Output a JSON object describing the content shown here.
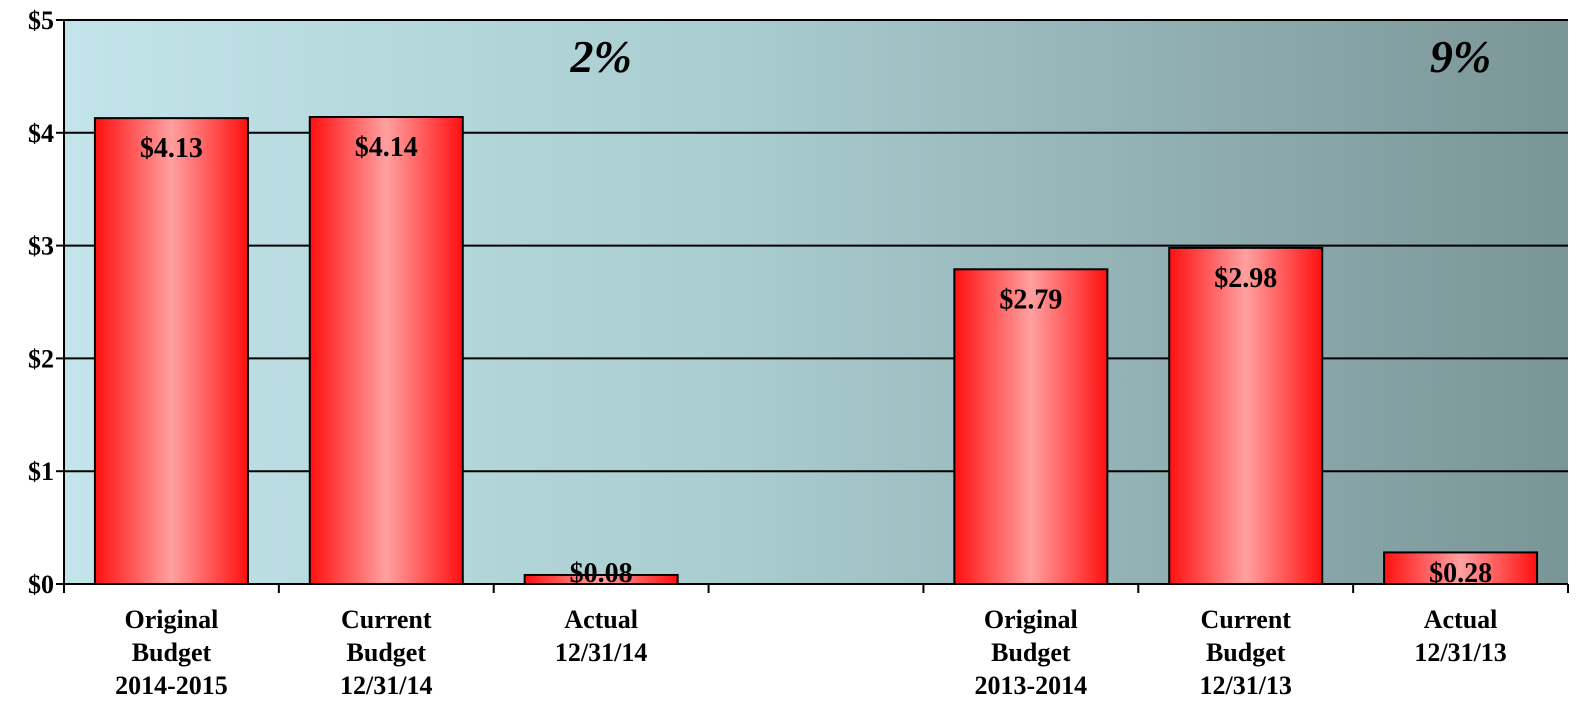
{
  "chart_data": {
    "type": "bar",
    "categories": [
      [
        "Original",
        "Budget",
        "2014-2015"
      ],
      [
        "Current",
        "Budget",
        "12/31/14"
      ],
      [
        "Actual",
        "12/31/14"
      ],
      [],
      [
        "Original",
        "Budget",
        "2013-2014"
      ],
      [
        "Current",
        "Budget",
        "12/31/13"
      ],
      [
        "Actual",
        "12/31/13"
      ]
    ],
    "values": [
      4.13,
      4.14,
      0.08,
      null,
      2.79,
      2.98,
      0.28
    ],
    "data_labels": [
      "$4.13",
      "$4.14",
      "$0.08",
      "",
      "$2.79",
      "$2.98",
      "$0.28"
    ],
    "y_ticks": [
      0,
      1,
      2,
      3,
      4,
      5
    ],
    "y_tick_labels": [
      "$0",
      "$1",
      "$2",
      "$3",
      "$4",
      "$5"
    ],
    "ylim": [
      0,
      5
    ],
    "grid": true,
    "annotations": [
      {
        "text": "2%",
        "category_index": 2
      },
      {
        "text": "9%",
        "category_index": 6
      }
    ],
    "colors": {
      "bar_edge": "#ff1010",
      "bar_center": "#ffa0a0",
      "bg_left": "#c2e4ea",
      "bg_right": "#7a9596"
    }
  }
}
